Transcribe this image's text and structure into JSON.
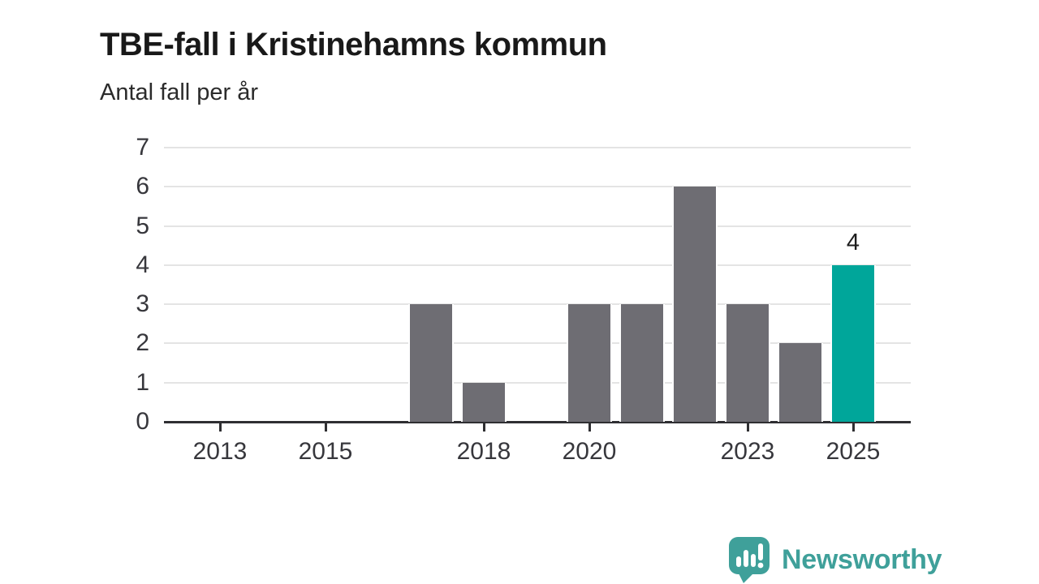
{
  "header": {
    "title": "TBE-fall i Kristinehamns kommun",
    "subtitle": "Antal fall per år"
  },
  "chart_data": {
    "type": "bar",
    "title": "TBE-fall i Kristinehamns kommun",
    "subtitle": "Antal fall per år",
    "categories": [
      2012,
      2013,
      2014,
      2015,
      2016,
      2017,
      2018,
      2019,
      2020,
      2021,
      2022,
      2023,
      2024,
      2025
    ],
    "values": [
      0,
      0,
      0,
      0,
      0,
      3,
      1,
      0,
      3,
      3,
      6,
      3,
      2,
      4
    ],
    "x_tick_labels": [
      "2013",
      "2015",
      "2018",
      "2020",
      "2023",
      "2025"
    ],
    "y_ticks": [
      "0",
      "1",
      "2",
      "3",
      "4",
      "5",
      "6",
      "7"
    ],
    "ylim": [
      0,
      7
    ],
    "grid": "horizontal",
    "legend": "none",
    "highlight_category": 2025,
    "data_labels": [
      {
        "category": 2025,
        "text": "4"
      }
    ],
    "colors": {
      "bar": "#6E6D73",
      "highlight_bar": "#00A69A",
      "gridline": "#E4E4E4",
      "axis_line": "#2F2F32",
      "tick_label": "#37373C",
      "value_label": "#1E1E1E"
    }
  },
  "footer": {
    "brand": "Newsworthy",
    "brand_color": "#3FA09A",
    "logo_icon": "speech-bubble-bar-chart-icon"
  }
}
